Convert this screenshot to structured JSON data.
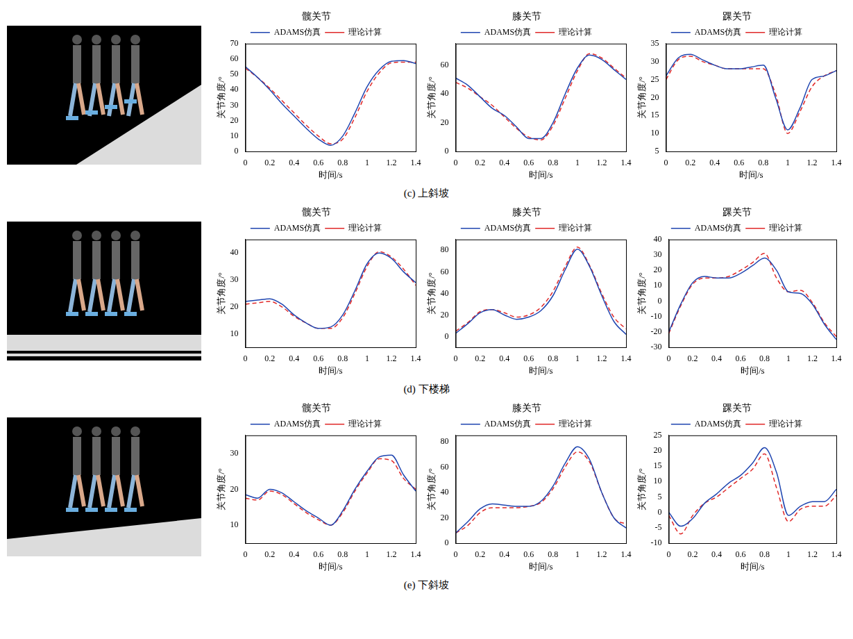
{
  "chart_data": [
    {
      "type": "line",
      "title": "髋关节",
      "x_label": "时间/s",
      "y_label": "关节角度/°",
      "x": [
        0,
        0.1,
        0.2,
        0.3,
        0.4,
        0.5,
        0.6,
        0.7,
        0.8,
        0.9,
        1.0,
        1.1,
        1.2,
        1.3,
        1.4
      ],
      "series": [
        {
          "name": "ADAMS仿真",
          "color": "#1f45b0",
          "line_style": "solid",
          "values": [
            55,
            48,
            40,
            31,
            23,
            15,
            8,
            4,
            10,
            25,
            42,
            53,
            58.5,
            59,
            57
          ]
        },
        {
          "name": "理论计算",
          "color": "#e02828",
          "line_style": "dashed",
          "values": [
            54,
            48,
            41,
            33,
            25,
            17,
            10,
            5,
            8,
            22,
            39,
            51,
            57.5,
            58,
            58
          ]
        }
      ],
      "xlim": [
        0,
        1.4
      ],
      "xticks": [
        0,
        0.2,
        0.4,
        0.6,
        0.8,
        1.0,
        1.2,
        1.4
      ],
      "ylim": [
        0,
        70
      ],
      "yticks": [
        0,
        10,
        20,
        30,
        40,
        50,
        60,
        70
      ],
      "grid": false,
      "legend": "top"
    },
    {
      "type": "line",
      "title": "膝关节",
      "x_label": "时间/s",
      "y_label": "关节角度/°",
      "x": [
        0,
        0.1,
        0.2,
        0.3,
        0.4,
        0.5,
        0.6,
        0.7,
        0.8,
        0.9,
        1.0,
        1.1,
        1.2,
        1.3,
        1.4
      ],
      "series": [
        {
          "name": "ADAMS仿真",
          "color": "#1f45b0",
          "line_style": "solid",
          "values": [
            51,
            46,
            38,
            30,
            25,
            17,
            9,
            9,
            20,
            40,
            58,
            67,
            64,
            57,
            50
          ]
        },
        {
          "name": "理论计算",
          "color": "#e02828",
          "line_style": "dashed",
          "values": [
            48,
            44,
            38,
            32,
            24,
            16,
            10,
            8,
            18,
            37,
            56,
            68,
            65,
            58,
            51
          ]
        }
      ],
      "xlim": [
        0,
        1.4
      ],
      "xticks": [
        0,
        0.2,
        0.4,
        0.6,
        0.8,
        1.0,
        1.2,
        1.4
      ],
      "ylim": [
        0,
        75
      ],
      "yticks": [
        0,
        20,
        40,
        60
      ],
      "grid": false,
      "legend": "top"
    },
    {
      "type": "line",
      "title": "踝关节",
      "x_label": "时间/s",
      "y_label": "关节角度/°",
      "x": [
        0,
        0.1,
        0.2,
        0.3,
        0.4,
        0.5,
        0.6,
        0.7,
        0.8,
        0.9,
        1.0,
        1.1,
        1.2,
        1.3,
        1.4
      ],
      "series": [
        {
          "name": "ADAMS仿真",
          "color": "#1f45b0",
          "line_style": "solid",
          "values": [
            26,
            31,
            32,
            30.5,
            29,
            28,
            28,
            28.5,
            29,
            20,
            11,
            17,
            25,
            26,
            27.5
          ]
        },
        {
          "name": "理论计算",
          "color": "#e02828",
          "line_style": "dashed",
          "values": [
            25,
            30.5,
            31.5,
            30,
            29,
            28,
            28,
            28,
            28,
            21,
            10,
            16,
            23,
            26,
            27.5
          ]
        }
      ],
      "xlim": [
        0,
        1.4
      ],
      "xticks": [
        0,
        0.2,
        0.4,
        0.6,
        0.8,
        1.0,
        1.2,
        1.4
      ],
      "ylim": [
        5,
        35
      ],
      "yticks": [
        5,
        10,
        15,
        20,
        25,
        30,
        35
      ],
      "grid": false,
      "legend": "top"
    },
    {
      "type": "line",
      "title": "髋关节",
      "x_label": "时间/s",
      "y_label": "关节角度/°",
      "x": [
        0,
        0.1,
        0.2,
        0.3,
        0.4,
        0.5,
        0.6,
        0.7,
        0.8,
        0.9,
        1.0,
        1.1,
        1.2,
        1.3,
        1.4
      ],
      "series": [
        {
          "name": "ADAMS仿真",
          "color": "#1f45b0",
          "line_style": "solid",
          "values": [
            22,
            22.5,
            23,
            21,
            17,
            14,
            12,
            12.5,
            17,
            26,
            36,
            40,
            38,
            33,
            29
          ]
        },
        {
          "name": "理论计算",
          "color": "#e02828",
          "line_style": "dashed",
          "values": [
            21,
            21.5,
            22,
            20,
            16.5,
            14,
            12,
            12,
            16,
            25,
            35,
            40.5,
            38.5,
            34,
            28
          ]
        }
      ],
      "xlim": [
        0,
        1.4
      ],
      "xticks": [
        0,
        0.2,
        0.4,
        0.6,
        0.8,
        1.0,
        1.2,
        1.4
      ],
      "ylim": [
        5,
        45
      ],
      "yticks": [
        10,
        20,
        30,
        40
      ],
      "grid": false,
      "legend": "top"
    },
    {
      "type": "line",
      "title": "膝关节",
      "x_label": "时间/s",
      "y_label": "关节角度/°",
      "x": [
        0,
        0.1,
        0.2,
        0.3,
        0.4,
        0.5,
        0.6,
        0.7,
        0.8,
        0.9,
        1.0,
        1.1,
        1.2,
        1.3,
        1.4
      ],
      "series": [
        {
          "name": "ADAMS仿真",
          "color": "#1f45b0",
          "line_style": "solid",
          "values": [
            3,
            12,
            22,
            25,
            20,
            16,
            18,
            24,
            38,
            62,
            81,
            65,
            38,
            14,
            2
          ]
        },
        {
          "name": "理论计算",
          "color": "#e02828",
          "line_style": "dashed",
          "values": [
            5,
            13,
            23,
            25,
            22,
            18,
            20,
            27,
            42,
            65,
            83,
            66,
            40,
            18,
            7
          ]
        }
      ],
      "xlim": [
        0,
        1.4
      ],
      "xticks": [
        0,
        0.2,
        0.4,
        0.6,
        0.8,
        1.0,
        1.2,
        1.4
      ],
      "ylim": [
        -10,
        90
      ],
      "yticks": [
        0,
        20,
        40,
        60,
        80
      ],
      "grid": false,
      "legend": "top"
    },
    {
      "type": "line",
      "title": "踝关节",
      "x_label": "时间/s",
      "y_label": "关节角度/°",
      "x": [
        0,
        0.1,
        0.2,
        0.3,
        0.4,
        0.5,
        0.6,
        0.7,
        0.8,
        0.9,
        1.0,
        1.1,
        1.2,
        1.3,
        1.4
      ],
      "series": [
        {
          "name": "ADAMS仿真",
          "color": "#1f45b0",
          "line_style": "solid",
          "values": [
            -20,
            -2,
            12,
            16,
            15,
            15,
            18,
            23,
            28,
            20,
            6,
            5,
            -2,
            -15,
            -25
          ]
        },
        {
          "name": "理论计算",
          "color": "#e02828",
          "line_style": "dashed",
          "values": [
            -21,
            -3,
            11,
            15,
            15,
            16,
            20,
            25,
            31,
            15,
            6,
            7,
            -1,
            -14,
            -23
          ]
        }
      ],
      "xlim": [
        0,
        1.4
      ],
      "xticks": [
        0,
        0.2,
        0.4,
        0.6,
        0.8,
        1.0,
        1.2,
        1.4
      ],
      "ylim": [
        -30,
        40
      ],
      "yticks": [
        -30,
        -20,
        -10,
        0,
        10,
        20,
        30,
        40
      ],
      "grid": false,
      "legend": "top"
    },
    {
      "type": "line",
      "title": "髋关节",
      "x_label": "时间/s",
      "y_label": "关节角度/°",
      "x": [
        0,
        0.1,
        0.2,
        0.3,
        0.4,
        0.5,
        0.6,
        0.7,
        0.8,
        0.9,
        1.0,
        1.1,
        1.2,
        1.3,
        1.4
      ],
      "series": [
        {
          "name": "ADAMS仿真",
          "color": "#1f45b0",
          "line_style": "solid",
          "values": [
            18.5,
            17.5,
            20,
            19,
            16.5,
            14,
            12,
            10,
            14,
            20,
            25,
            29,
            29.5,
            24,
            19.5
          ]
        },
        {
          "name": "理论计算",
          "color": "#e02828",
          "line_style": "dashed",
          "values": [
            17.5,
            17,
            19.5,
            18.5,
            16,
            13.5,
            11.5,
            10,
            13.5,
            19.5,
            24.5,
            28.5,
            28,
            23,
            20
          ]
        }
      ],
      "xlim": [
        0,
        1.4
      ],
      "xticks": [
        0,
        0.2,
        0.4,
        0.6,
        0.8,
        1.0,
        1.2,
        1.4
      ],
      "ylim": [
        5,
        35
      ],
      "yticks": [
        10,
        20,
        30
      ],
      "grid": false,
      "legend": "top"
    },
    {
      "type": "line",
      "title": "膝关节",
      "x_label": "时间/s",
      "y_label": "关节角度/°",
      "x": [
        0,
        0.1,
        0.2,
        0.3,
        0.4,
        0.5,
        0.6,
        0.7,
        0.8,
        0.9,
        1.0,
        1.1,
        1.2,
        1.3,
        1.4
      ],
      "series": [
        {
          "name": "ADAMS仿真",
          "color": "#1f45b0",
          "line_style": "solid",
          "values": [
            8,
            17,
            27,
            31,
            30,
            29,
            29,
            33,
            45,
            63,
            76,
            66,
            40,
            20,
            12
          ]
        },
        {
          "name": "理论计算",
          "color": "#e02828",
          "line_style": "dashed",
          "values": [
            8,
            14,
            24,
            28,
            28,
            28,
            29,
            32,
            43,
            60,
            72,
            64,
            40,
            20,
            15
          ]
        }
      ],
      "xlim": [
        0,
        1.4
      ],
      "xticks": [
        0,
        0.2,
        0.4,
        0.6,
        0.8,
        1.0,
        1.2,
        1.4
      ],
      "ylim": [
        0,
        85
      ],
      "yticks": [
        0,
        20,
        40,
        60,
        80
      ],
      "grid": false,
      "legend": "top"
    },
    {
      "type": "line",
      "title": "踝关节",
      "x_label": "时间/s",
      "y_label": "关节角度/°",
      "x": [
        0,
        0.1,
        0.2,
        0.3,
        0.4,
        0.5,
        0.6,
        0.7,
        0.8,
        0.9,
        1.0,
        1.1,
        1.2,
        1.3,
        1.4
      ],
      "series": [
        {
          "name": "ADAMS仿真",
          "color": "#1f45b0",
          "line_style": "solid",
          "values": [
            0,
            -4.5,
            -2,
            3,
            6,
            9.5,
            12,
            16,
            21,
            13,
            -1,
            2,
            3.5,
            3.5,
            7.5
          ]
        },
        {
          "name": "理论计算",
          "color": "#e02828",
          "line_style": "dashed",
          "values": [
            -1,
            -7,
            -1,
            3,
            5,
            8,
            11,
            14,
            19,
            8,
            -3,
            1,
            2,
            2,
            5.5
          ]
        }
      ],
      "xlim": [
        0,
        1.4
      ],
      "xticks": [
        0,
        0.2,
        0.4,
        0.6,
        0.8,
        1.0,
        1.2,
        1.4
      ],
      "ylim": [
        -10,
        25
      ],
      "yticks": [
        -10,
        -5,
        0,
        5,
        10,
        15,
        20,
        25
      ],
      "grid": false,
      "legend": "top"
    }
  ],
  "captions": [
    "(c) 上斜坡",
    "(d) 下楼梯",
    "(e) 下斜坡"
  ]
}
